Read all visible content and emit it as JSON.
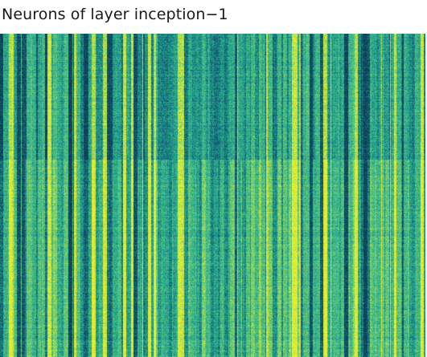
{
  "chart_data": {
    "type": "heatmap",
    "title": "Neurons of layer inception−1",
    "xlabel": "",
    "ylabel": "",
    "value_range": [
      0,
      1
    ],
    "colormap": {
      "name": "viridis-like",
      "stops": [
        "#0d3d57",
        "#155e6e",
        "#1b8a87",
        "#2fb08f",
        "#5cc77c",
        "#9cd95a",
        "#e8ee2a"
      ]
    },
    "regions": [
      {
        "name": "upper-block",
        "relative_rows": [
          0.0,
          0.39
        ],
        "mean_level": 0.45
      },
      {
        "name": "lower-block",
        "relative_rows": [
          0.39,
          1.0
        ],
        "mean_level": 0.55
      }
    ],
    "column_pattern": "vertical stripes of per-neuron activation with bright yellow and dark teal columns"
  }
}
